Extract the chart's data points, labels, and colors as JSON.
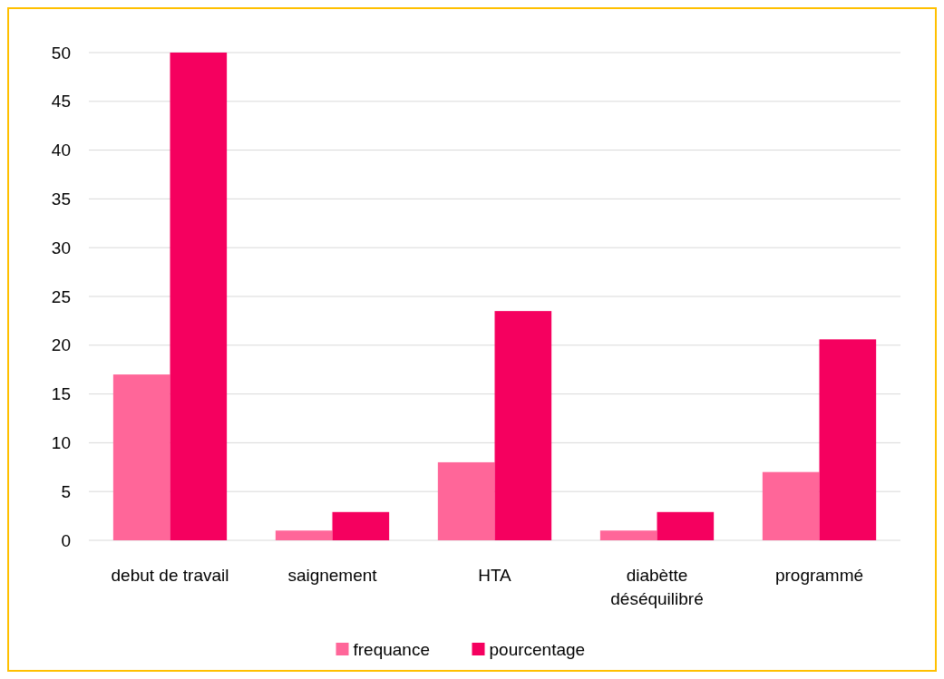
{
  "chart_data": {
    "type": "bar",
    "categories": [
      "debut de travail",
      "saignement",
      "HTA",
      "diabètte déséquilibré",
      "programmé"
    ],
    "series": [
      {
        "name": "frequance",
        "color": "#ff6699",
        "values": [
          17,
          1,
          8,
          1,
          7
        ]
      },
      {
        "name": "pourcentage",
        "color": "#f5005f",
        "values": [
          50,
          2.9,
          23.5,
          2.9,
          20.6
        ]
      }
    ],
    "ylim": [
      0,
      50
    ],
    "yticks": [
      0,
      5,
      10,
      15,
      20,
      25,
      30,
      35,
      40,
      45,
      50
    ],
    "grid": "y",
    "legend": "bottom"
  }
}
